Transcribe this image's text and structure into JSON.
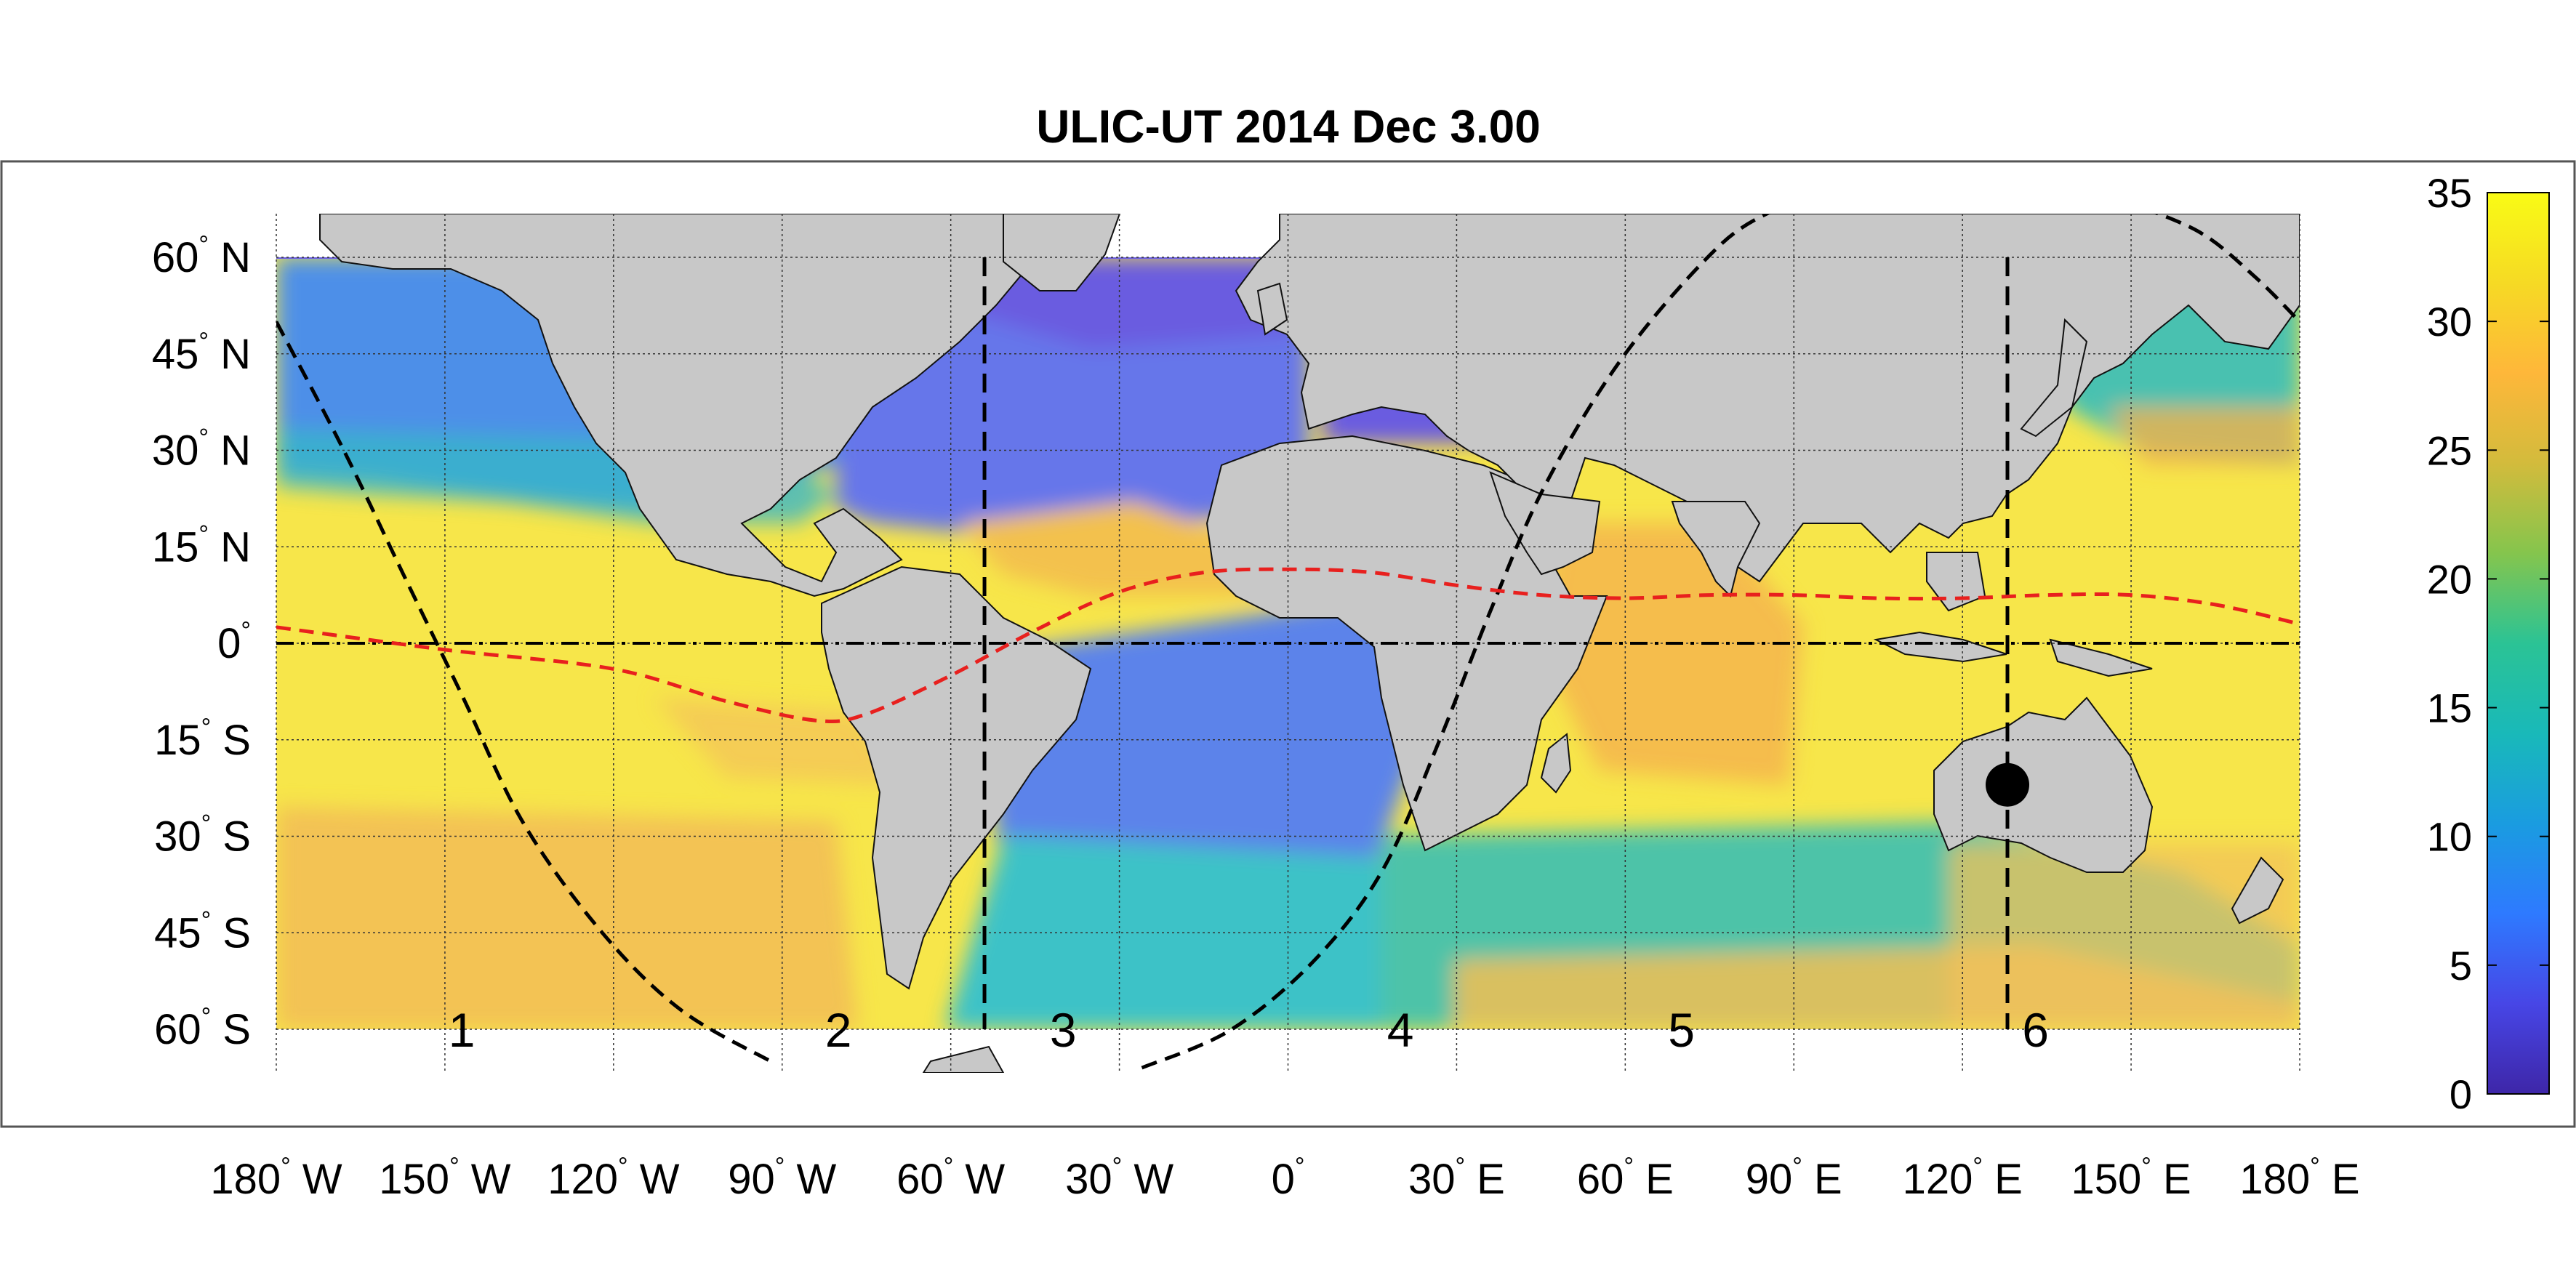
{
  "title": "ULIC-UT 2014 Dec  3.00",
  "map": {
    "projection": "equirectangular",
    "lon_range": [
      -180,
      180
    ],
    "lat_range": [
      -70,
      70
    ],
    "data_lat_range": [
      -60,
      63
    ],
    "land_color": "#c8c8c8",
    "grid": true,
    "lon_ticks": [
      {
        "lon": -180,
        "num": "180",
        "deg": "°",
        "hem": " W"
      },
      {
        "lon": -150,
        "num": "150",
        "deg": "°",
        "hem": " W"
      },
      {
        "lon": -120,
        "num": "120",
        "deg": "°",
        "hem": " W"
      },
      {
        "lon": -90,
        "num": "90",
        "deg": "°",
        "hem": " W"
      },
      {
        "lon": -60,
        "num": "60",
        "deg": "°",
        "hem": " W"
      },
      {
        "lon": -30,
        "num": "30",
        "deg": "°",
        "hem": " W"
      },
      {
        "lon": 0,
        "num": "0",
        "deg": "°",
        "hem": ""
      },
      {
        "lon": 30,
        "num": "30",
        "deg": "°",
        "hem": " E"
      },
      {
        "lon": 60,
        "num": "60",
        "deg": "°",
        "hem": " E"
      },
      {
        "lon": 90,
        "num": "90",
        "deg": "°",
        "hem": " E"
      },
      {
        "lon": 120,
        "num": "120",
        "deg": "°",
        "hem": " E"
      },
      {
        "lon": 150,
        "num": "150",
        "deg": "°",
        "hem": " E"
      },
      {
        "lon": 180,
        "num": "180",
        "deg": "°",
        "hem": " E"
      }
    ],
    "lat_ticks": [
      {
        "lat": 60,
        "num": "60",
        "deg": "°",
        "hem": " N"
      },
      {
        "lat": 45,
        "num": "45",
        "deg": "°",
        "hem": " N"
      },
      {
        "lat": 30,
        "num": "30",
        "deg": "°",
        "hem": " N"
      },
      {
        "lat": 15,
        "num": "15",
        "deg": "°",
        "hem": " N"
      },
      {
        "lat": 0,
        "num": "0",
        "deg": "°",
        "hem": ""
      },
      {
        "lat": -15,
        "num": "15",
        "deg": "°",
        "hem": " S"
      },
      {
        "lat": -30,
        "num": "30",
        "deg": "°",
        "hem": " S"
      },
      {
        "lat": -45,
        "num": "45",
        "deg": "°",
        "hem": " S"
      },
      {
        "lat": -60,
        "num": "60",
        "deg": "°",
        "hem": " S"
      }
    ],
    "zone_labels": [
      {
        "text": "1",
        "lon": -147,
        "lat": -60
      },
      {
        "text": "2",
        "lon": -80,
        "lat": -60
      },
      {
        "text": "3",
        "lon": -40,
        "lat": -60
      },
      {
        "text": "4",
        "lon": 20,
        "lat": -60
      },
      {
        "text": "5",
        "lon": 70,
        "lat": -60
      },
      {
        "text": "6",
        "lon": 133,
        "lat": -60
      }
    ],
    "meridian_lines_lon": [
      -54,
      128
    ],
    "equator_line_lat": 0,
    "marker": {
      "lon": 128,
      "lat": -22,
      "color": "#000000"
    },
    "itcz_line": {
      "color": "#e8201e",
      "points": [
        [
          -180,
          2.5
        ],
        [
          -150,
          -1
        ],
        [
          -120,
          -4
        ],
        [
          -100,
          -9
        ],
        [
          -84,
          -12
        ],
        [
          -75,
          -11
        ],
        [
          -60,
          -5
        ],
        [
          -45,
          2
        ],
        [
          -30,
          8
        ],
        [
          -15,
          11
        ],
        [
          0,
          11.5
        ],
        [
          15,
          11
        ],
        [
          30,
          9
        ],
        [
          45,
          7.5
        ],
        [
          60,
          7
        ],
        [
          75,
          7.5
        ],
        [
          90,
          7.5
        ],
        [
          105,
          7
        ],
        [
          120,
          7
        ],
        [
          135,
          7.5
        ],
        [
          150,
          7.5
        ],
        [
          165,
          6
        ],
        [
          180,
          3
        ]
      ]
    },
    "terminator_lines": [
      [
        [
          -180,
          50
        ],
        [
          -168,
          30
        ],
        [
          -157,
          10
        ],
        [
          -147,
          -8
        ],
        [
          -136,
          -28
        ],
        [
          -122,
          -45
        ],
        [
          -108,
          -57
        ],
        [
          -92,
          -65
        ]
      ],
      [
        [
          -26,
          -66
        ],
        [
          -10,
          -60
        ],
        [
          5,
          -49
        ],
        [
          17,
          -35
        ],
        [
          27,
          -15
        ],
        [
          36,
          5
        ],
        [
          46,
          25
        ],
        [
          60,
          45
        ],
        [
          77,
          62
        ],
        [
          88,
          68
        ]
      ],
      [
        [
          148,
          69
        ],
        [
          162,
          64
        ],
        [
          172,
          57
        ],
        [
          180,
          50
        ]
      ]
    ]
  },
  "colorbar": {
    "min": 0,
    "max": 35,
    "ticks": [
      "0",
      "5",
      "10",
      "15",
      "20",
      "25",
      "30",
      "35"
    ],
    "colors": [
      "#3e26a8",
      "#4746e6",
      "#2e7aff",
      "#1a9ce0",
      "#19b9b9",
      "#2bc395",
      "#85c54d",
      "#d3bb3c",
      "#feb73a",
      "#f6da24",
      "#f9fb15"
    ]
  }
}
